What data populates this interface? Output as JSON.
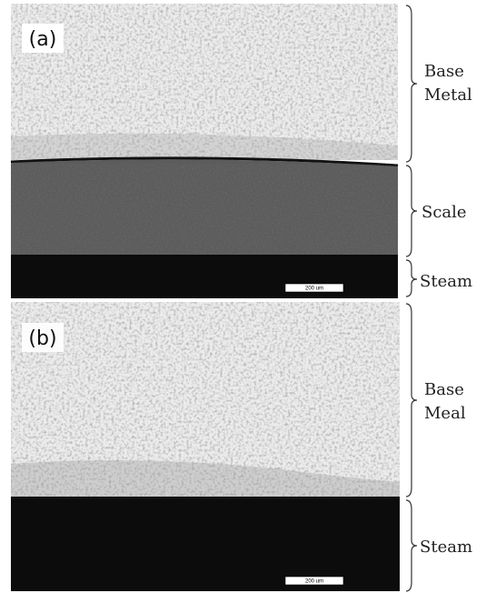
{
  "panels": [
    {
      "label": "(a)",
      "scale_bar": "200 um",
      "annotations": [
        {
          "lines": [
            "Base",
            "Metal"
          ]
        },
        {
          "lines": [
            "Scale"
          ]
        },
        {
          "lines": [
            "Steam"
          ]
        }
      ]
    },
    {
      "label": "(b)",
      "scale_bar": "200 um",
      "annotations": [
        {
          "lines": [
            "Base",
            "Meal"
          ]
        },
        {
          "lines": [
            "Steam"
          ]
        }
      ]
    }
  ]
}
